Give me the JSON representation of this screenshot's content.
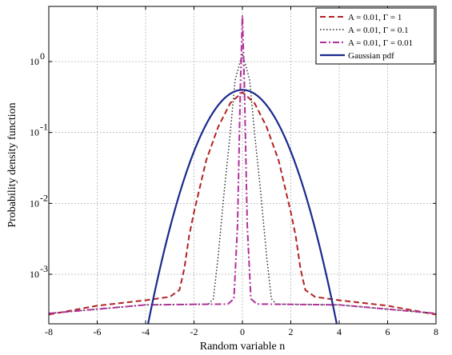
{
  "chart_data": {
    "type": "line",
    "xlabel": "Random variable n",
    "ylabel": "Probability density function",
    "xlim": [
      -8,
      8
    ],
    "ylim": [
      0.0002,
      6
    ],
    "y_scale": "log",
    "grid": true,
    "legend_position": "top-right",
    "x_ticks": [
      -8,
      -6,
      -4,
      -2,
      0,
      2,
      4,
      6,
      8
    ],
    "x_tick_labels": [
      "-8",
      "-6",
      "-4",
      "-2",
      "0",
      "2",
      "4",
      "6",
      "8"
    ],
    "y_ticks": [
      0.001,
      0.01,
      0.1,
      1
    ],
    "y_tick_labels": [
      {
        "base": "10",
        "exp": "-3"
      },
      {
        "base": "10",
        "exp": "-2"
      },
      {
        "base": "10",
        "exp": "-1"
      },
      {
        "base": "10",
        "exp": "0"
      }
    ],
    "series": [
      {
        "name": "A = 0.01, Γ = 1",
        "color": "#b22222",
        "style": "dashed",
        "x": [
          -8,
          -6,
          -4,
          -3,
          -2.6,
          -2.4,
          -2.2,
          -2,
          -1.5,
          -1,
          -0.5,
          0,
          0.5,
          1,
          1.5,
          2,
          2.2,
          2.4,
          2.6,
          3,
          4,
          6,
          8
        ],
        "y": [
          0.00027,
          0.00036,
          0.00043,
          0.00048,
          0.0006,
          0.0012,
          0.0035,
          0.0075,
          0.04,
          0.12,
          0.26,
          0.37,
          0.26,
          0.12,
          0.04,
          0.0075,
          0.0035,
          0.0012,
          0.0006,
          0.00048,
          0.00043,
          0.00036,
          0.00027
        ]
      },
      {
        "name": "A = 0.01, Γ = 0.1",
        "color": "#222222",
        "style": "dotted",
        "x": [
          -8,
          -4,
          -1.4,
          -1.2,
          -1,
          -0.75,
          -0.5,
          -0.3,
          0,
          0.3,
          0.5,
          0.75,
          1,
          1.2,
          1.4,
          4,
          8
        ],
        "y": [
          0.00028,
          0.00037,
          0.00038,
          0.00045,
          0.0018,
          0.015,
          0.1,
          0.55,
          1.3,
          0.55,
          0.1,
          0.015,
          0.0018,
          0.00045,
          0.00038,
          0.00037,
          0.00028
        ]
      },
      {
        "name": "A = 0.01, Γ = 0.01",
        "color": "#b0309a",
        "style": "dashdot",
        "x": [
          -8,
          -4,
          -0.6,
          -0.35,
          -0.2,
          -0.08,
          0,
          0.08,
          0.2,
          0.35,
          0.6,
          4,
          8
        ],
        "y": [
          0.00028,
          0.00037,
          0.00038,
          0.00045,
          0.005,
          0.5,
          4.5,
          0.5,
          0.005,
          0.00045,
          0.00038,
          0.00037,
          0.00028
        ]
      },
      {
        "name": "Gaussian pdf",
        "color": "#1a2a8c",
        "style": "solid",
        "gaussian": {
          "mean": 0,
          "std": 1,
          "x_min": -4,
          "x_max": 4
        }
      }
    ]
  }
}
